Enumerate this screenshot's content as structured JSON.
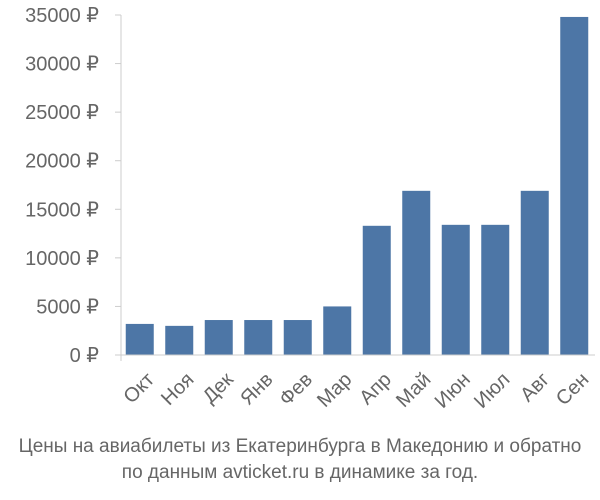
{
  "chart_data": {
    "type": "bar",
    "categories": [
      "Окт",
      "Ноя",
      "Дек",
      "Янв",
      "Фев",
      "Мар",
      "Апр",
      "Май",
      "Июн",
      "Июл",
      "Авг",
      "Сен"
    ],
    "values": [
      3200,
      3000,
      3600,
      3600,
      3600,
      5000,
      13300,
      16900,
      13400,
      13400,
      16900,
      34800
    ],
    "y_ticks": [
      "0 ₽",
      "5000 ₽",
      "10000 ₽",
      "15000 ₽",
      "20000 ₽",
      "25000 ₽",
      "30000 ₽",
      "35000 ₽"
    ],
    "ylim": [
      0,
      35000
    ],
    "grid": false,
    "bar_color": "#4d76a6",
    "axis_color": "#cccccc"
  },
  "caption": {
    "line1": "Цены на авиабилеты из Екатеринбурга в Македонию и обратно",
    "line2": "по данным avticket.ru в динамике за год."
  }
}
